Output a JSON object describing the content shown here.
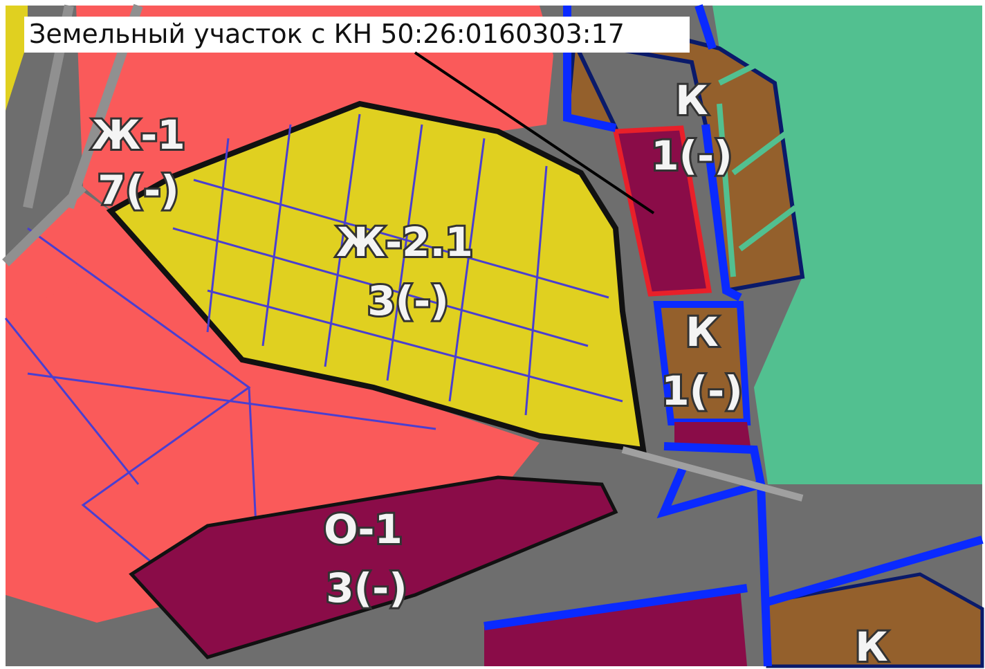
{
  "callout": {
    "text": "Земельный участок с КН 50:26:0160303:17"
  },
  "zones": [
    {
      "code": "Ж-1",
      "number": "7(-)"
    },
    {
      "code": "Ж-2.1",
      "number": "3(-)"
    },
    {
      "code": "К",
      "number": "1(-)"
    },
    {
      "code": "К",
      "number": "1(-)"
    },
    {
      "code": "О-1",
      "number": "3(-)"
    },
    {
      "code": "К"
    }
  ]
}
